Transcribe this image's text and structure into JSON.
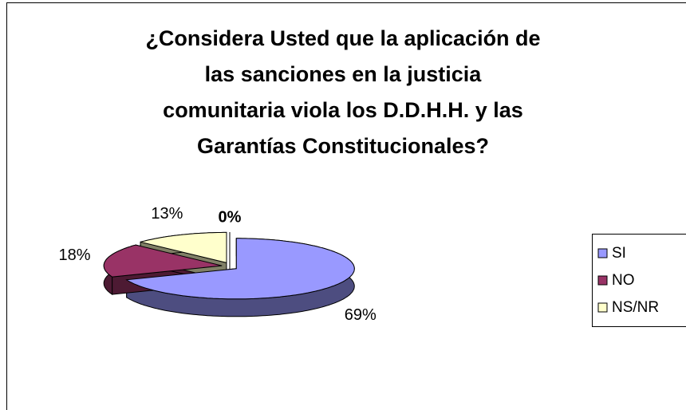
{
  "chart_data": {
    "type": "pie",
    "title": [
      "¿Considera Usted que la aplicación de",
      "las sanciones en la justicia",
      "comunitaria viola los D.D.H.H. y las",
      "Garantías Constitucionales?"
    ],
    "categories": [
      "SI",
      "NO",
      "NS/NR",
      null
    ],
    "values": [
      69,
      18,
      13,
      0
    ],
    "value_labels": [
      "69%",
      "18%",
      "13%",
      "0%"
    ],
    "colors": [
      "#9999ff",
      "#993366",
      "#ffffcc",
      "#808080"
    ],
    "three_d": true,
    "legend": "right"
  }
}
